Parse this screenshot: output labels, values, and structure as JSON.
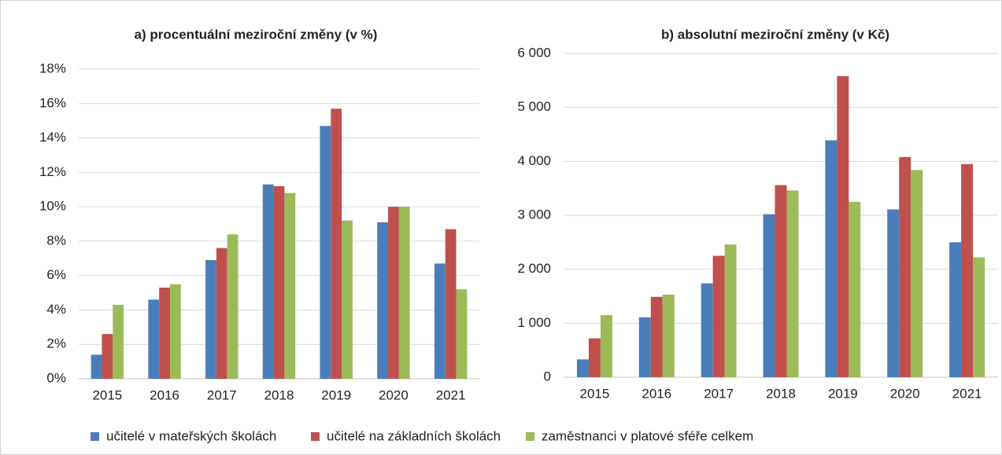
{
  "chart_data": [
    {
      "type": "bar",
      "title": "a) procentuální meziroční změny (v %)",
      "categories": [
        "2015",
        "2016",
        "2017",
        "2018",
        "2019",
        "2020",
        "2021"
      ],
      "series": [
        {
          "name": "učitelé v mateřských školách",
          "color": "#4a7ebb",
          "values": [
            1.4,
            4.6,
            6.9,
            11.3,
            14.7,
            9.1,
            6.7
          ]
        },
        {
          "name": "učitelé na základních školách",
          "color": "#c0504d",
          "values": [
            2.6,
            5.3,
            7.6,
            11.2,
            15.7,
            10.0,
            8.7
          ]
        },
        {
          "name": "zaměstnanci v platové sféře celkem",
          "color": "#9bbb59",
          "values": [
            4.3,
            5.5,
            8.4,
            10.8,
            9.2,
            10.0,
            5.2
          ]
        }
      ],
      "ylim": [
        0,
        18
      ],
      "yticks": [
        {
          "value": 0,
          "label": "0%"
        },
        {
          "value": 2,
          "label": "2%"
        },
        {
          "value": 4,
          "label": "4%"
        },
        {
          "value": 6,
          "label": "6%"
        },
        {
          "value": 8,
          "label": "8%"
        },
        {
          "value": 10,
          "label": "10%"
        },
        {
          "value": 12,
          "label": "12%"
        },
        {
          "value": 14,
          "label": "14%"
        },
        {
          "value": 16,
          "label": "16%"
        },
        {
          "value": 18,
          "label": "18%"
        }
      ],
      "grid": true
    },
    {
      "type": "bar",
      "title": "b) absolutní meziroční změny (v Kč)",
      "categories": [
        "2015",
        "2016",
        "2017",
        "2018",
        "2019",
        "2020",
        "2021"
      ],
      "series": [
        {
          "color": "#4a7ebb",
          "values": [
            330,
            1110,
            1740,
            3020,
            4390,
            3110,
            2500
          ]
        },
        {
          "color": "#c0504d",
          "values": [
            720,
            1490,
            2250,
            3560,
            5580,
            4080,
            3950
          ]
        },
        {
          "color": "#9bbb59",
          "values": [
            1150,
            1530,
            2460,
            3460,
            3250,
            3840,
            2220
          ]
        }
      ],
      "ylim": [
        0,
        6000
      ],
      "yticks": [
        0,
        {
          "value": 1000,
          "label": "1 000"
        },
        {
          "value": 2000,
          "label": "2 000"
        },
        {
          "value": 3000,
          "label": "3 000"
        },
        {
          "value": 4000,
          "label": "4 000"
        },
        {
          "value": 5000,
          "label": "5 000"
        },
        {
          "value": 6000,
          "label": "6 000"
        }
      ],
      "grid": true
    }
  ]
}
